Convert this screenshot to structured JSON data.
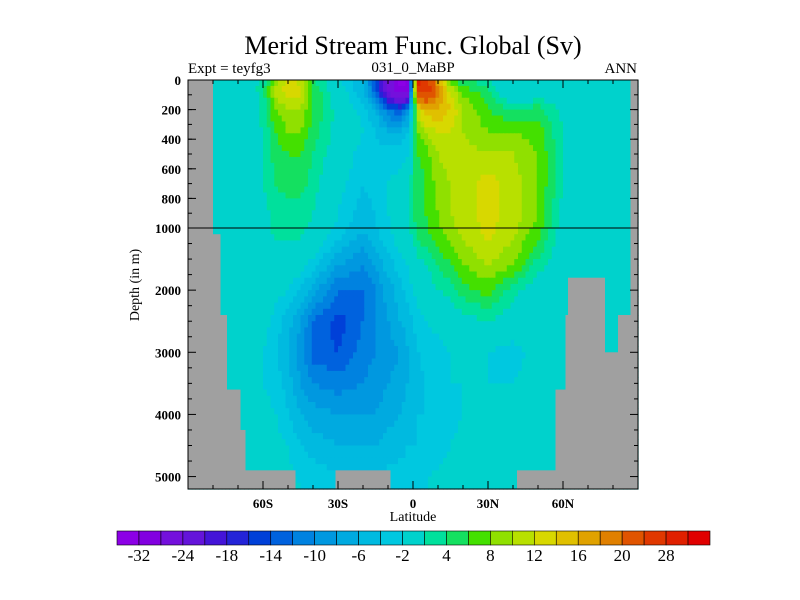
{
  "chart_data": {
    "type": "heatmap",
    "title": "Merid Stream Func. Global (Sv)",
    "subtitle_left": "Expt = teyfg3",
    "subtitle_center": "031_0_MaBP",
    "subtitle_right": "ANN",
    "xlabel": "Latitude",
    "ylabel": "Depth (in m)",
    "xlim": [
      -90,
      90
    ],
    "ylim": [
      5200,
      0
    ],
    "y_axis_break_depth": 1000,
    "xticks": [
      {
        "value": -60,
        "label": "60S"
      },
      {
        "value": -30,
        "label": "30S"
      },
      {
        "value": 0,
        "label": "0"
      },
      {
        "value": 30,
        "label": "30N"
      },
      {
        "value": 60,
        "label": "60N"
      }
    ],
    "yticks": [
      {
        "value": 0,
        "label": "0"
      },
      {
        "value": 200,
        "label": "200"
      },
      {
        "value": 400,
        "label": "400"
      },
      {
        "value": 600,
        "label": "600"
      },
      {
        "value": 800,
        "label": "800"
      },
      {
        "value": 1000,
        "label": "1000"
      },
      {
        "value": 2000,
        "label": "2000"
      },
      {
        "value": 3000,
        "label": "3000"
      },
      {
        "value": 4000,
        "label": "4000"
      },
      {
        "value": 5000,
        "label": "5000"
      }
    ],
    "land_color": "#a0a0a0",
    "contour_levels": [
      -32,
      -28,
      -24,
      -20,
      -18,
      -16,
      -14,
      -12,
      -10,
      -8,
      -6,
      -4,
      -2,
      2,
      4,
      6,
      8,
      10,
      12,
      14,
      16,
      18,
      20,
      24,
      28,
      32
    ],
    "colorbar_labels": [
      "-32",
      "-24",
      "-18",
      "-14",
      "-10",
      "-6",
      "-2",
      "4",
      "8",
      "12",
      "16",
      "20",
      "28"
    ],
    "colors": [
      "#8c00e6",
      "#8200e0",
      "#7410dc",
      "#6414da",
      "#4414d8",
      "#2424d8",
      "#0040d8",
      "#0062de",
      "#0082e0",
      "#0098e0",
      "#00aae0",
      "#00bae0",
      "#00c8e0",
      "#00d2cc",
      "#00e09c",
      "#14e060",
      "#44e000",
      "#90e000",
      "#b8e000",
      "#d8d800",
      "#e0c000",
      "#e0a200",
      "#e08000",
      "#e05400",
      "#e03800",
      "#e02000",
      "#e00000"
    ],
    "lat": [
      -90,
      -80,
      -70,
      -60,
      -55,
      -50,
      -45,
      -40,
      -30,
      -20,
      -15,
      -10,
      -5,
      -2,
      0,
      2,
      5,
      10,
      15,
      20,
      30,
      40,
      50,
      60,
      70,
      80,
      90
    ],
    "depth": [
      0,
      40,
      100,
      200,
      350,
      500,
      700,
      900,
      1200,
      1600,
      2000,
      2500,
      3000,
      3500,
      4000,
      4500,
      5200
    ],
    "values": [
      [
        0,
        0,
        0,
        2,
        8,
        12,
        10,
        4,
        -1,
        -6,
        -14,
        -24,
        -32,
        -30,
        0,
        28,
        26,
        14,
        6,
        4,
        2,
        -1,
        0,
        0,
        0,
        0,
        0
      ],
      [
        0,
        0,
        -1,
        3,
        10,
        14,
        13,
        6,
        -1,
        -6,
        -14,
        -26,
        -34,
        -32,
        0,
        30,
        28,
        20,
        10,
        6,
        4,
        -2,
        0,
        0,
        0,
        0,
        0
      ],
      [
        0,
        0,
        -2,
        3,
        10,
        13,
        12,
        6,
        0,
        -5,
        -12,
        -22,
        -28,
        -24,
        0,
        22,
        24,
        18,
        12,
        8,
        5,
        -2,
        1,
        0,
        0,
        0,
        0
      ],
      [
        0,
        0,
        -2,
        3,
        8,
        10,
        10,
        6,
        1,
        -3,
        -6,
        -12,
        -14,
        -10,
        0,
        12,
        16,
        16,
        14,
        10,
        6,
        4,
        5,
        1,
        0,
        0,
        0
      ],
      [
        0,
        0,
        -1,
        2,
        6,
        8,
        8,
        5,
        1,
        -2,
        -4,
        -6,
        -6,
        -4,
        2,
        8,
        10,
        12,
        12,
        10,
        8,
        8,
        7,
        2,
        0,
        0,
        0
      ],
      [
        0,
        0,
        0,
        2,
        5,
        6,
        6,
        4,
        0,
        -3,
        -3,
        -3,
        -3,
        -2,
        3,
        6,
        7,
        10,
        11,
        11,
        10,
        10,
        8,
        2,
        0,
        0,
        0
      ],
      [
        0,
        0,
        0,
        2,
        4,
        5,
        5,
        3,
        -1,
        -4,
        -3,
        -2,
        -1,
        0,
        4,
        5,
        6,
        9,
        10,
        11,
        13,
        11,
        8,
        2,
        0,
        0,
        0
      ],
      [
        0,
        0,
        0,
        1,
        3,
        3,
        3,
        2,
        -2,
        -5,
        -4,
        -2,
        0,
        1,
        4,
        5,
        6,
        8,
        10,
        11,
        13,
        11,
        8,
        1,
        0,
        0,
        0
      ],
      [
        0,
        0,
        0,
        1,
        2,
        2,
        2,
        0,
        -4,
        -7,
        -5,
        -3,
        -1,
        0,
        2,
        4,
        5,
        7,
        8,
        10,
        12,
        10,
        6,
        0,
        0,
        0,
        0
      ],
      [
        0,
        0,
        0,
        0,
        1,
        0,
        -1,
        -3,
        -8,
        -10,
        -8,
        -5,
        -3,
        -2,
        0,
        1,
        2,
        4,
        6,
        8,
        10,
        8,
        3,
        0,
        0,
        0,
        0
      ],
      [
        0,
        0,
        0,
        0,
        -1,
        -2,
        -4,
        -7,
        -12,
        -12,
        -10,
        -7,
        -5,
        -3,
        -2,
        -1,
        0,
        2,
        3,
        5,
        7,
        3,
        0,
        0,
        0,
        0,
        0
      ],
      [
        0,
        0,
        0,
        -1,
        -3,
        -5,
        -8,
        -12,
        -15,
        -12,
        -10,
        -8,
        -6,
        -5,
        -4,
        -3,
        -2,
        -1,
        0,
        1,
        2,
        0,
        0,
        0,
        0,
        0,
        0
      ],
      [
        0,
        0,
        0,
        -2,
        -4,
        -6,
        -9,
        -13,
        -14,
        -11,
        -10,
        -9,
        -8,
        -6,
        -5,
        -4,
        -3,
        -3,
        -2,
        -1,
        -2,
        -3,
        -1,
        0,
        0,
        0,
        0
      ],
      [
        0,
        0,
        0,
        -2,
        -3,
        -5,
        -8,
        -10,
        -11,
        -10,
        -9,
        -8,
        -7,
        -6,
        -5,
        -5,
        -4,
        -3,
        -2,
        -2,
        -2,
        -2,
        -1,
        0,
        0,
        0,
        0
      ],
      [
        0,
        0,
        0,
        -1,
        -2,
        -4,
        -6,
        -7,
        -8,
        -8,
        -8,
        -7,
        -6,
        -5,
        -5,
        -4,
        -4,
        -4,
        -3,
        -2,
        -1,
        -1,
        0,
        0,
        0,
        0,
        0
      ],
      [
        0,
        0,
        0,
        0,
        -1,
        -2,
        -4,
        -5,
        -6,
        -6,
        -6,
        -5,
        -5,
        -4,
        -4,
        -4,
        -3,
        -3,
        -2,
        -1,
        0,
        0,
        0,
        0,
        0,
        0,
        0
      ],
      [
        0,
        0,
        0,
        0,
        0,
        -1,
        -2,
        -2,
        -3,
        -3,
        -3,
        -3,
        -2,
        -2,
        -2,
        -2,
        -2,
        -1,
        -1,
        0,
        0,
        0,
        0,
        0,
        0,
        0,
        0
      ]
    ],
    "land_mask": [
      [
        -90,
        -80,
        0,
        5200
      ],
      [
        -80,
        -77,
        1100,
        5200
      ],
      [
        -77,
        -74.4,
        2400,
        5200
      ],
      [
        -74.4,
        -69,
        3600,
        5200
      ],
      [
        -69,
        -67,
        4250,
        5200
      ],
      [
        -67,
        -47,
        4900,
        5200
      ],
      [
        -31,
        -9,
        4900,
        5200
      ],
      [
        41.6,
        90,
        4900,
        5200
      ],
      [
        57,
        90,
        3600,
        5200
      ],
      [
        62,
        76.8,
        1800,
        5200
      ],
      [
        61,
        62,
        2400,
        5200
      ],
      [
        76.8,
        82,
        3000,
        5200
      ],
      [
        82,
        90,
        2400,
        5200
      ],
      [
        87,
        90,
        0,
        5200
      ]
    ]
  }
}
